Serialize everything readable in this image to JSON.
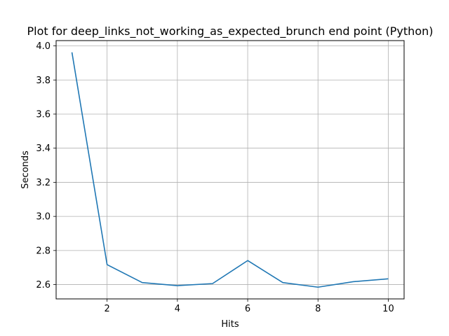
{
  "chart_data": {
    "type": "line",
    "title": "Plot for deep_links_not_working_as_expected_brunch end point (Python)",
    "xlabel": "Hits",
    "ylabel": "Seconds",
    "x": [
      1,
      2,
      3,
      4,
      5,
      6,
      7,
      8,
      9,
      10
    ],
    "series": [
      {
        "values": [
          3.962,
          2.717,
          2.612,
          2.594,
          2.606,
          2.741,
          2.612,
          2.585,
          2.617,
          2.634
        ],
        "color": "#1f77b4"
      }
    ],
    "xticks": [
      2,
      4,
      6,
      8,
      10
    ],
    "yticks": [
      2.6,
      2.8,
      3.0,
      3.2,
      3.4,
      3.6,
      3.8,
      4.0
    ],
    "xlim": [
      0.55,
      10.45
    ],
    "ylim": [
      2.5162,
      4.0309
    ],
    "grid": true
  }
}
